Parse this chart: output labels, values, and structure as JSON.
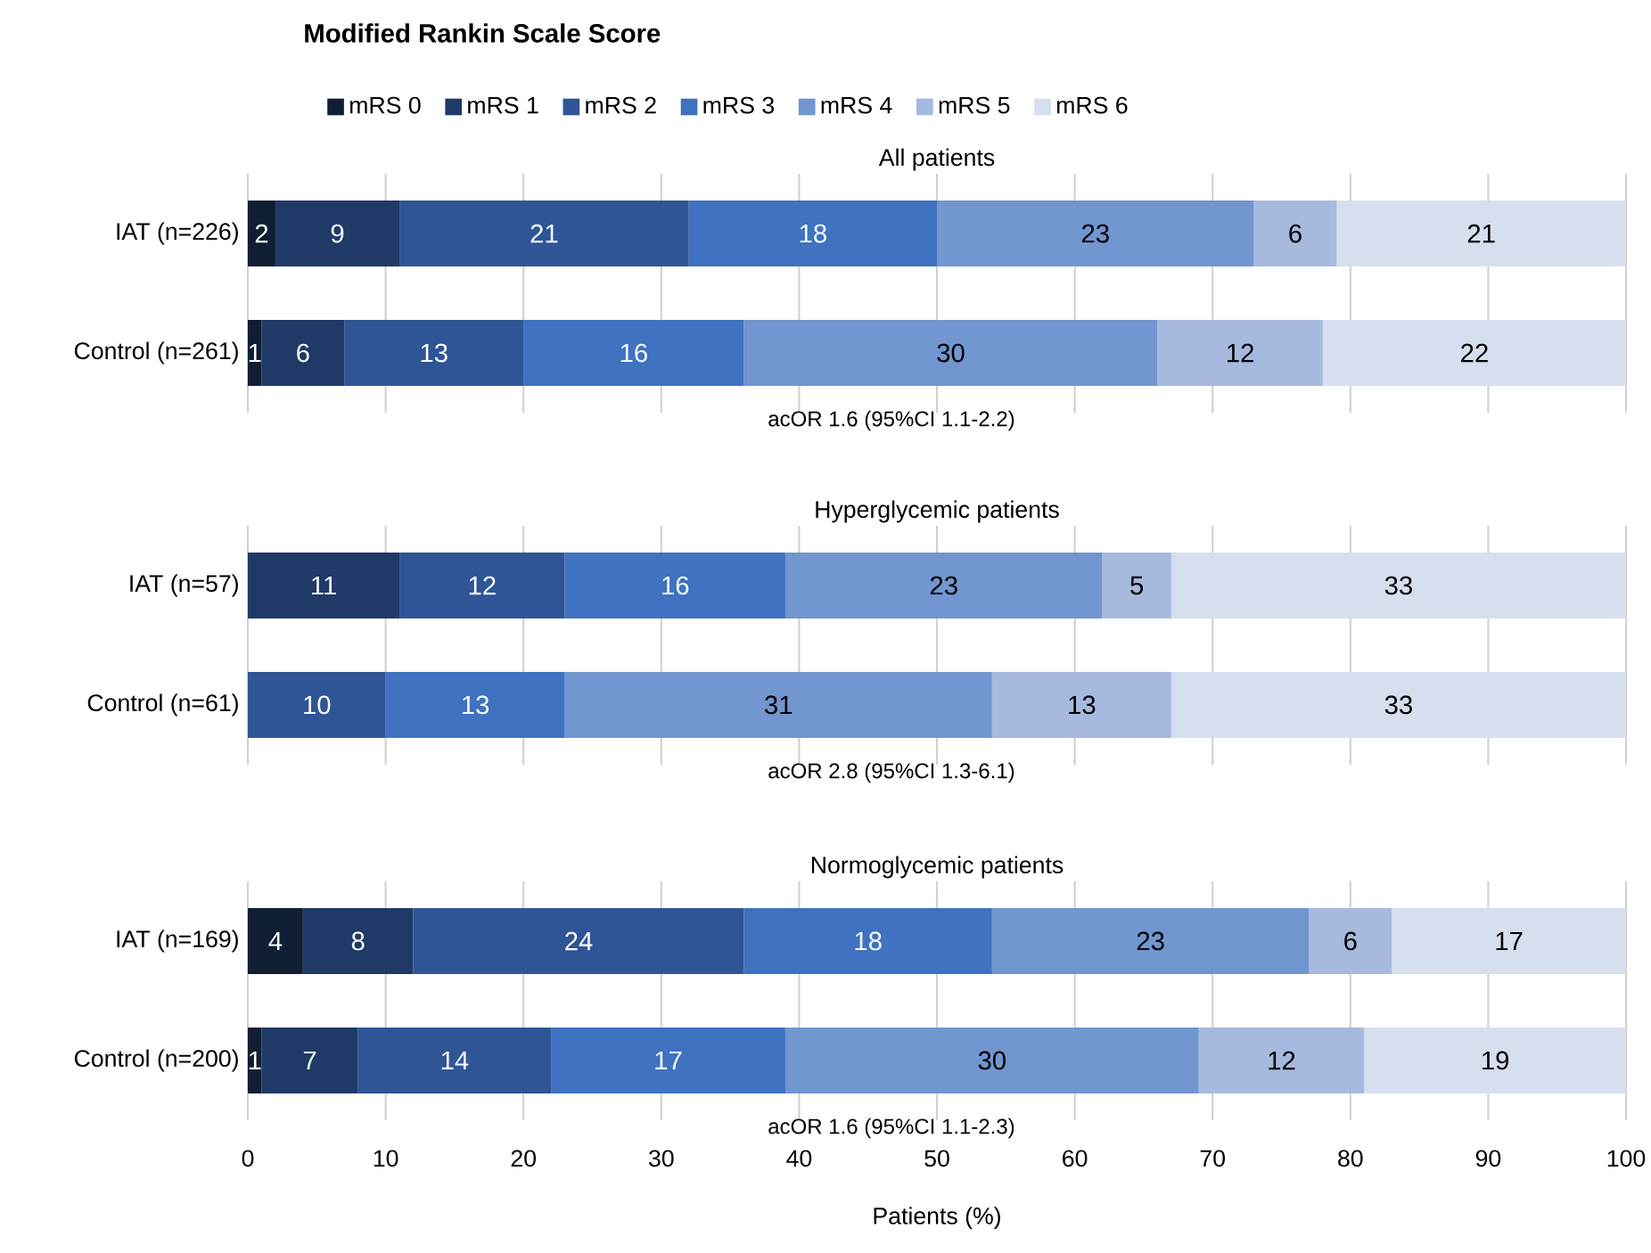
{
  "chart_data": [
    {
      "type": "bar",
      "orientation": "horizontal",
      "stacked": true,
      "title": "Modified Rankin Scale Score",
      "subtitle": "All patients",
      "categories": [
        "IAT (n=226)",
        "Control (n=261)"
      ],
      "xlim": [
        0,
        100
      ],
      "xticks": [
        0,
        10,
        20,
        30,
        40,
        50,
        60,
        70,
        80,
        90,
        100
      ],
      "grid": "x",
      "legend": "top",
      "tick_labels": "y",
      "annotations": [
        "acOR 1.6 (95%CI 1.1-2.2)"
      ],
      "series": [
        {
          "name": "mRS 0",
          "color": "#0f1e33",
          "values": [
            2,
            1
          ],
          "value_labels": [
            "2",
            "1"
          ]
        },
        {
          "name": "mRS 1",
          "color": "#1f3a66",
          "values": [
            9,
            6
          ],
          "value_labels": [
            "9",
            "6"
          ]
        },
        {
          "name": "mRS 2",
          "color": "#2f5597",
          "values": [
            21,
            13
          ],
          "value_labels": [
            "21",
            "13"
          ]
        },
        {
          "name": "mRS 3",
          "color": "#3f72c0",
          "values": [
            18,
            16
          ],
          "value_labels": [
            "18",
            "16"
          ]
        },
        {
          "name": "mRS 4",
          "color": "#7196d0",
          "values": [
            23,
            30
          ],
          "value_labels": [
            "23",
            "30"
          ]
        },
        {
          "name": "mRS 5",
          "color": "#a6b9df",
          "values": [
            6,
            12
          ],
          "value_labels": [
            "6",
            "12"
          ]
        },
        {
          "name": "mRS 6",
          "color": "#d5dfee",
          "values": [
            21,
            22
          ],
          "value_labels": [
            "21",
            "22"
          ]
        }
      ]
    },
    {
      "type": "bar",
      "orientation": "horizontal",
      "stacked": true,
      "title": "Hyperglycemic patients",
      "categories": [
        "IAT (n=57)",
        "Control (n=61)"
      ],
      "xlim": [
        0,
        100
      ],
      "xticks": [
        0,
        10,
        20,
        30,
        40,
        50,
        60,
        70,
        80,
        90,
        100
      ],
      "grid": "x",
      "tick_labels": "y",
      "annotations": [
        "acOR 2.8 (95%CI 1.3-6.1)"
      ],
      "series": [
        {
          "color": "#0f1e33",
          "values": [
            0,
            0
          ],
          "value_labels": [
            null,
            null
          ]
        },
        {
          "color": "#1f3a66",
          "values": [
            11,
            0
          ],
          "value_labels": [
            "11",
            null
          ]
        },
        {
          "color": "#2f5597",
          "values": [
            12,
            10
          ],
          "value_labels": [
            "12",
            "10"
          ]
        },
        {
          "color": "#3f72c0",
          "values": [
            16,
            13
          ],
          "value_labels": [
            "16",
            "13"
          ]
        },
        {
          "color": "#7196d0",
          "values": [
            23,
            31
          ],
          "value_labels": [
            "23",
            "31"
          ]
        },
        {
          "color": "#a6b9df",
          "values": [
            5,
            13
          ],
          "value_labels": [
            "5",
            "13"
          ]
        },
        {
          "color": "#d5dfee",
          "values": [
            33,
            33
          ],
          "value_labels": [
            "33",
            "33"
          ]
        }
      ]
    },
    {
      "type": "bar",
      "orientation": "horizontal",
      "stacked": true,
      "title": "Normoglycemic patients",
      "xlabel": "Patients (%)",
      "categories": [
        "IAT (n=169)",
        "Control (n=200)"
      ],
      "xlim": [
        0,
        100
      ],
      "xticks": [
        0,
        10,
        20,
        30,
        40,
        50,
        60,
        70,
        80,
        90,
        100
      ],
      "grid": "x",
      "annotations": [
        "acOR 1.6 (95%CI 1.1-2.3)"
      ],
      "series": [
        {
          "color": "#0f1e33",
          "values": [
            4,
            1
          ],
          "value_labels": [
            "4",
            "1"
          ]
        },
        {
          "color": "#1f3a66",
          "values": [
            8,
            7
          ],
          "value_labels": [
            "8",
            "7"
          ]
        },
        {
          "color": "#2f5597",
          "values": [
            24,
            14
          ],
          "value_labels": [
            "24",
            "14"
          ]
        },
        {
          "color": "#3f72c0",
          "values": [
            18,
            17
          ],
          "value_labels": [
            "18",
            "17"
          ]
        },
        {
          "color": "#7196d0",
          "values": [
            23,
            30
          ],
          "value_labels": [
            "23",
            "30"
          ]
        },
        {
          "color": "#a6b9df",
          "values": [
            6,
            12
          ],
          "value_labels": [
            "6",
            "12"
          ]
        },
        {
          "color": "#d5dfee",
          "values": [
            17,
            19
          ],
          "value_labels": [
            "17",
            "19"
          ]
        }
      ]
    }
  ]
}
